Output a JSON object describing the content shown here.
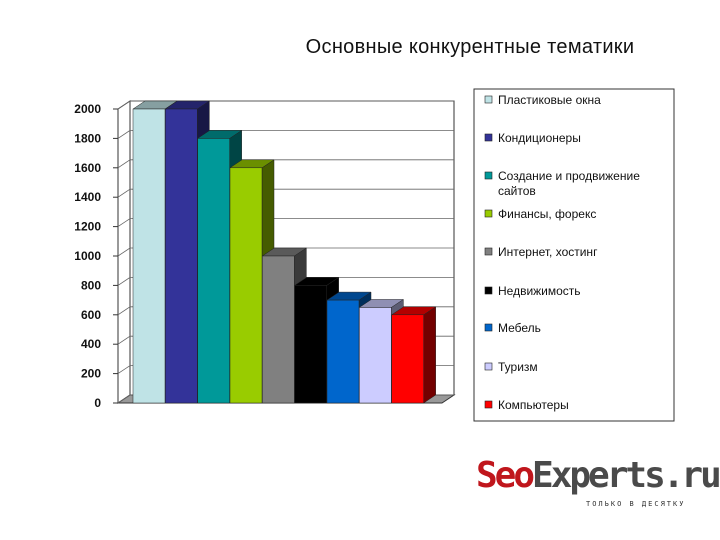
{
  "chart_data": {
    "type": "bar",
    "title": "Основные конкурентные тематики",
    "ylim": [
      0,
      2000
    ],
    "yticks": [
      0,
      200,
      400,
      600,
      800,
      1000,
      1200,
      1400,
      1600,
      1800,
      2000
    ],
    "grid": true,
    "legend_position": "right",
    "series": [
      {
        "name": "Пластиковые окна",
        "value": 2000,
        "color": "#bfe3e6"
      },
      {
        "name": "Кондиционеры",
        "value": 2000,
        "color": "#333399"
      },
      {
        "name": "Создание и продвижение сайтов",
        "value": 1800,
        "color": "#009999"
      },
      {
        "name": "Финансы, форекс",
        "value": 1600,
        "color": "#99cc00"
      },
      {
        "name": "Интернет, хостинг",
        "value": 1000,
        "color": "#808080"
      },
      {
        "name": "Недвижимость",
        "value": 800,
        "color": "#000000"
      },
      {
        "name": "Мебель",
        "value": 700,
        "color": "#0066cc"
      },
      {
        "name": "Туризм",
        "value": 650,
        "color": "#ccccff"
      },
      {
        "name": "Компьютеры",
        "value": 600,
        "color": "#ff0000"
      }
    ]
  },
  "logo": {
    "seo": "Seo",
    "experts": "Experts.ru",
    "tagline": "ТОЛЬКО В ДЕСЯТКУ"
  }
}
